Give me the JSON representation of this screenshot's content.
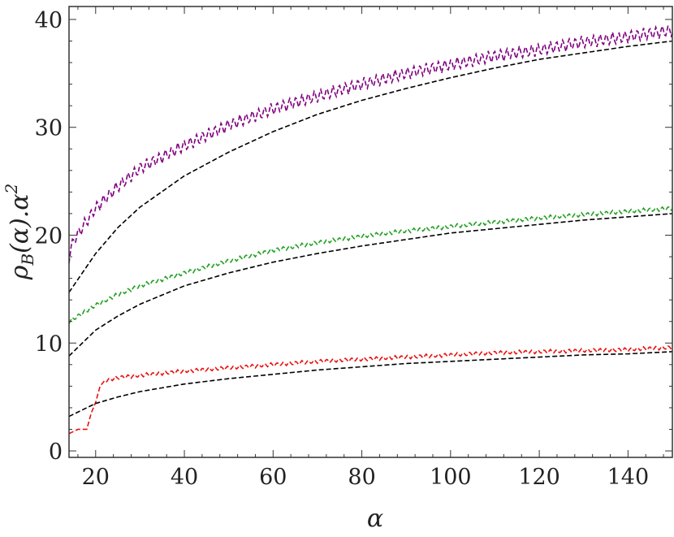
{
  "chart_data": {
    "type": "line",
    "title": "",
    "xlabel": "α",
    "ylabel": "ρ_B(α).α²",
    "ylabel_parts": {
      "rho": "ρ",
      "sub": "B",
      "mid": "(α).α",
      "sup": "2"
    },
    "xlim": [
      14,
      150
    ],
    "ylim": [
      -0.6,
      41.2
    ],
    "xticks": [
      20,
      40,
      60,
      80,
      100,
      120,
      140
    ],
    "yticks": [
      0,
      10,
      20,
      30,
      40
    ],
    "grid": false,
    "legend": "none",
    "series": [
      {
        "color": "#800080",
        "dash": "dash",
        "x": [
          14,
          15,
          20,
          25,
          30,
          40,
          50,
          60,
          70,
          80,
          90,
          100,
          110,
          120,
          130,
          140,
          150
        ],
        "y": [
          18.0,
          19.5,
          22.5,
          24.5,
          26.2,
          28.3,
          30.2,
          31.7,
          32.9,
          34.0,
          35.0,
          35.8,
          36.6,
          37.2,
          37.9,
          38.4,
          39.0
        ],
        "oscillation": 1.5
      },
      {
        "color": "#000000",
        "dash": "dash",
        "x": [
          14,
          20,
          25,
          30,
          40,
          50,
          60,
          70,
          80,
          90,
          100,
          110,
          120,
          130,
          140,
          150
        ],
        "y": [
          14.7,
          18.3,
          20.7,
          22.6,
          25.5,
          27.7,
          29.6,
          31.2,
          32.5,
          33.6,
          34.6,
          35.5,
          36.3,
          36.9,
          37.5,
          38.0
        ],
        "oscillation": 0
      },
      {
        "color": "#22a022",
        "dash": "dash",
        "x": [
          14,
          20,
          25,
          30,
          40,
          50,
          60,
          70,
          80,
          90,
          100,
          110,
          120,
          130,
          140,
          150
        ],
        "y": [
          12.0,
          13.5,
          14.5,
          15.3,
          16.5,
          17.6,
          18.6,
          19.3,
          19.9,
          20.4,
          20.8,
          21.2,
          21.6,
          21.9,
          22.2,
          22.5
        ],
        "oscillation": 0.5
      },
      {
        "color": "#000000",
        "dash": "dash",
        "x": [
          14,
          20,
          25,
          30,
          40,
          50,
          60,
          70,
          80,
          90,
          100,
          110,
          120,
          130,
          140,
          150
        ],
        "y": [
          8.8,
          11.2,
          12.5,
          13.6,
          15.3,
          16.5,
          17.5,
          18.3,
          19.0,
          19.6,
          20.2,
          20.6,
          21.0,
          21.4,
          21.7,
          22.0
        ],
        "oscillation": 0
      },
      {
        "color": "#e81010",
        "dash": "dash",
        "x": [
          14,
          16,
          18,
          19,
          20,
          21,
          22,
          25,
          30,
          40,
          50,
          60,
          70,
          80,
          90,
          100,
          110,
          120,
          130,
          140,
          150
        ],
        "y": [
          1.6,
          2.0,
          2.0,
          3.5,
          4.5,
          6.0,
          6.5,
          6.8,
          7.0,
          7.4,
          7.7,
          8.0,
          8.3,
          8.5,
          8.7,
          8.9,
          9.1,
          9.2,
          9.3,
          9.4,
          9.6
        ],
        "oscillation": 0.45
      },
      {
        "color": "#000000",
        "dash": "dash",
        "x": [
          14,
          20,
          25,
          30,
          40,
          50,
          60,
          70,
          80,
          90,
          100,
          110,
          120,
          130,
          140,
          150
        ],
        "y": [
          3.2,
          4.4,
          5.0,
          5.5,
          6.2,
          6.7,
          7.1,
          7.5,
          7.8,
          8.1,
          8.3,
          8.5,
          8.7,
          8.9,
          9.0,
          9.2
        ],
        "oscillation": 0
      }
    ]
  }
}
